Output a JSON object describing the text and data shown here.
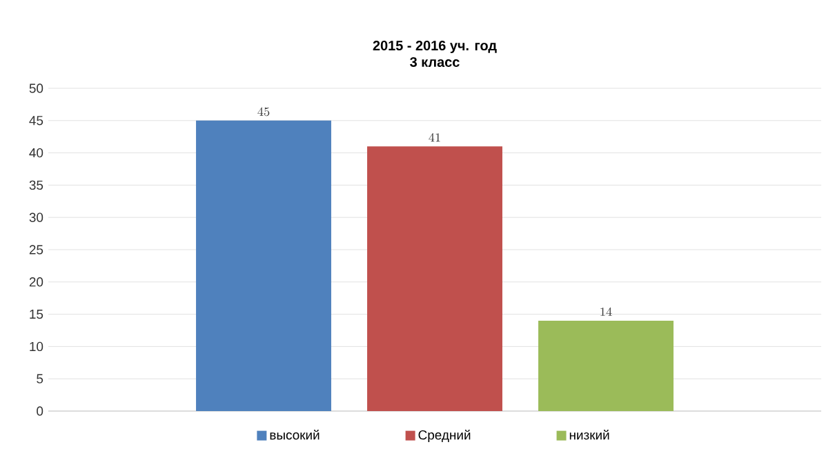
{
  "chart_data": {
    "type": "bar",
    "title": "2015 - 2016 уч. год",
    "subtitle": "3  класс",
    "categories": [
      null
    ],
    "series": [
      {
        "name": "высокий",
        "color": "#4f81bd",
        "values": [
          45
        ]
      },
      {
        "name": "Средний",
        "color": "#c0504d",
        "values": [
          41
        ]
      },
      {
        "name": "низкий",
        "color": "#9bbb59",
        "values": [
          14
        ]
      }
    ],
    "ylim": [
      0,
      50
    ],
    "yticks": [
      0,
      5,
      10,
      15,
      20,
      25,
      30,
      35,
      40,
      45,
      50
    ],
    "grid": "y",
    "legend": "bottom",
    "data_labels": true
  }
}
